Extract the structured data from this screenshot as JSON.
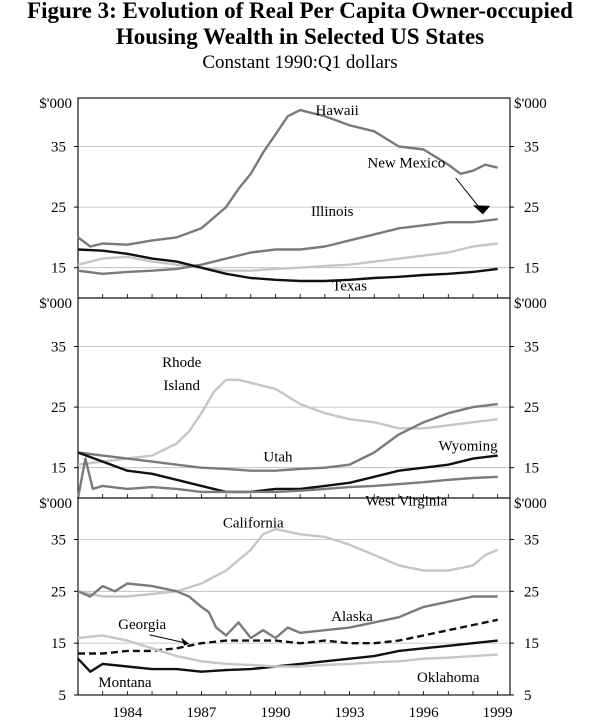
{
  "figure": {
    "title_line1": "Figure 3: Evolution of Real Per Capita Owner-occupied",
    "title_line2": "Housing Wealth in Selected US States",
    "subtitle": "Constant 1990:Q1 dollars"
  },
  "colors": {
    "dark": "#111111",
    "medium": "#7a7a7a",
    "light": "#c6c6c6"
  },
  "chart_data": [
    {
      "type": "line",
      "unit_label": "$'000",
      "yticks": [
        15,
        25,
        35
      ],
      "ylim": [
        10,
        43
      ],
      "xlim": [
        1982,
        1999.5
      ],
      "grid": true,
      "series": [
        {
          "name": "Hawaii",
          "color": "medium",
          "style": "solid",
          "x": [
            1982,
            1982.5,
            1983,
            1984,
            1985,
            1986,
            1987,
            1988,
            1988.5,
            1989,
            1989.5,
            1990,
            1990.5,
            1991,
            1991.5,
            1992,
            1993,
            1994,
            1995,
            1996,
            1997,
            1997.5,
            1998,
            1998.5,
            1999
          ],
          "y": [
            20,
            18.5,
            19,
            18.8,
            19.5,
            20,
            21.5,
            25,
            28,
            30.5,
            34,
            37,
            40,
            41,
            40.5,
            40,
            38.5,
            37.5,
            35,
            34.5,
            32,
            30.5,
            31,
            32,
            31.5
          ]
        },
        {
          "name": "New Mexico",
          "color": "light",
          "style": "solid",
          "x": [
            1982,
            1983,
            1984,
            1985,
            1986,
            1987,
            1988,
            1989,
            1990,
            1991,
            1992,
            1993,
            1994,
            1995,
            1996,
            1997,
            1998,
            1999
          ],
          "y": [
            15.5,
            16.5,
            16.8,
            16,
            15.5,
            15,
            14.5,
            14.5,
            14.8,
            15,
            15.3,
            15.5,
            16,
            16.5,
            17,
            17.5,
            18.5,
            19
          ]
        },
        {
          "name": "Illinois",
          "color": "medium",
          "style": "solid",
          "x": [
            1982,
            1983,
            1984,
            1985,
            1986,
            1987,
            1988,
            1989,
            1990,
            1991,
            1992,
            1993,
            1994,
            1995,
            1996,
            1997,
            1998,
            1999
          ],
          "y": [
            14.5,
            14,
            14.3,
            14.5,
            14.8,
            15.5,
            16.5,
            17.5,
            18,
            18,
            18.5,
            19.5,
            20.5,
            21.5,
            22,
            22.5,
            22.5,
            23
          ]
        },
        {
          "name": "Texas",
          "color": "dark",
          "style": "solid",
          "x": [
            1982,
            1983,
            1984,
            1985,
            1986,
            1987,
            1988,
            1989,
            1990,
            1991,
            1992,
            1993,
            1994,
            1995,
            1996,
            1997,
            1998,
            1999
          ],
          "y": [
            18,
            17.8,
            17.3,
            16.5,
            16,
            15,
            14,
            13.3,
            13,
            12.8,
            12.8,
            13,
            13.3,
            13.5,
            13.8,
            14,
            14.3,
            14.8
          ]
        }
      ],
      "labels": [
        {
          "text": "Hawaii",
          "x": 1992.5,
          "y": 40.2
        },
        {
          "text": "New Mexico",
          "x": 1995.3,
          "y": 31.5
        },
        {
          "text": "Illinois",
          "x": 1992.3,
          "y": 23.5
        },
        {
          "text": "Texas",
          "x": 1993.0,
          "y": 11.2
        }
      ]
    },
    {
      "type": "line",
      "unit_label": "$'000",
      "yticks": [
        15,
        25,
        35
      ],
      "ylim": [
        10,
        43
      ],
      "xlim": [
        1982,
        1999.5
      ],
      "grid": true,
      "series": [
        {
          "name": "Rhode Island",
          "color": "light",
          "style": "solid",
          "x": [
            1982,
            1983,
            1984,
            1985,
            1986,
            1986.5,
            1987,
            1987.5,
            1988,
            1988.5,
            1989,
            1990,
            1991,
            1992,
            1993,
            1994,
            1995,
            1996,
            1997,
            1998,
            1999
          ],
          "y": [
            15.5,
            16,
            16.5,
            17,
            19,
            21,
            24,
            27.5,
            29.5,
            29.5,
            29,
            28,
            25.5,
            24,
            23,
            22.5,
            21.5,
            21.5,
            22,
            22.5,
            23
          ]
        },
        {
          "name": "Utah",
          "color": "medium",
          "style": "solid",
          "x": [
            1982,
            1983,
            1984,
            1985,
            1986,
            1987,
            1988,
            1989,
            1990,
            1991,
            1992,
            1993,
            1994,
            1995,
            1996,
            1997,
            1998,
            1999
          ],
          "y": [
            17.5,
            17,
            16.5,
            16,
            15.5,
            15,
            14.8,
            14.5,
            14.5,
            14.8,
            15,
            15.5,
            17.5,
            20.5,
            22.5,
            24,
            25,
            25.5
          ]
        },
        {
          "name": "Wyoming",
          "color": "dark",
          "style": "solid",
          "x": [
            1982,
            1983,
            1984,
            1985,
            1986,
            1987,
            1988,
            1989,
            1990,
            1991,
            1992,
            1993,
            1994,
            1995,
            1996,
            1997,
            1998,
            1999
          ],
          "y": [
            17.5,
            16,
            14.5,
            14,
            13,
            12,
            11,
            11,
            11.5,
            11.5,
            12,
            12.5,
            13.5,
            14.5,
            15,
            15.5,
            16.5,
            17
          ]
        },
        {
          "name": "West Virginia",
          "color": "medium",
          "style": "solid",
          "x": [
            1982,
            1982.3,
            1982.6,
            1983,
            1984,
            1985,
            1986,
            1987,
            1988,
            1989,
            1990,
            1991,
            1992,
            1993,
            1994,
            1995,
            1996,
            1997,
            1998,
            1999
          ],
          "y": [
            10,
            16.5,
            11.5,
            12,
            11.5,
            11.8,
            11.5,
            11,
            11,
            11,
            11,
            11.2,
            11.5,
            11.8,
            12,
            12.3,
            12.6,
            13,
            13.3,
            13.5
          ]
        }
      ],
      "labels": [
        {
          "text": "Rhode",
          "x": 1986.2,
          "y": 31.6
        },
        {
          "text": "Island",
          "x": 1986.2,
          "y": 27.8
        },
        {
          "text": "Utah",
          "x": 1990.1,
          "y": 16.0
        },
        {
          "text": "Wyoming",
          "x": 1997.8,
          "y": 17.8
        },
        {
          "text": "West Virginia",
          "x": 1995.3,
          "y": 8.8
        }
      ]
    },
    {
      "type": "line",
      "unit_label": "$'000",
      "yticks": [
        5,
        15,
        25,
        35
      ],
      "ylim": [
        5,
        43
      ],
      "xlim": [
        1982,
        1999.5
      ],
      "xticks": [
        1984,
        1987,
        1990,
        1993,
        1996,
        1999
      ],
      "grid": true,
      "series": [
        {
          "name": "California",
          "color": "light",
          "style": "solid",
          "x": [
            1982,
            1983,
            1984,
            1985,
            1986,
            1987,
            1988,
            1989,
            1989.5,
            1990,
            1991,
            1992,
            1993,
            1994,
            1995,
            1996,
            1997,
            1998,
            1998.5,
            1999
          ],
          "y": [
            25,
            24,
            24,
            24.5,
            25,
            26.5,
            29,
            33,
            36,
            37,
            36,
            35.5,
            34,
            32,
            30,
            29,
            29,
            30,
            32,
            33
          ]
        },
        {
          "name": "Alaska",
          "color": "medium",
          "style": "solid",
          "x": [
            1982,
            1982.5,
            1983,
            1983.5,
            1984,
            1985,
            1986,
            1986.5,
            1987,
            1987.3,
            1987.6,
            1988,
            1988.5,
            1989,
            1989.5,
            1990,
            1990.5,
            1991,
            1992,
            1993,
            1994,
            1995,
            1996,
            1997,
            1998,
            1999
          ],
          "y": [
            25,
            24,
            26,
            25,
            26.5,
            26,
            25,
            24,
            22,
            21,
            18,
            16.5,
            19,
            16,
            17.5,
            16,
            18,
            17,
            17.5,
            18,
            19,
            20,
            22,
            23,
            24,
            24
          ]
        },
        {
          "name": "Georgia",
          "color": "dark",
          "style": "dashed",
          "x": [
            1982,
            1983,
            1984,
            1985,
            1986,
            1987,
            1988,
            1989,
            1990,
            1991,
            1992,
            1993,
            1994,
            1995,
            1996,
            1997,
            1998,
            1999
          ],
          "y": [
            13,
            13,
            13.5,
            13.5,
            14,
            15,
            15.5,
            15.5,
            15.5,
            15,
            15.5,
            15,
            15,
            15.5,
            16.5,
            17.5,
            18.5,
            19.5
          ]
        },
        {
          "name": "Montana",
          "color": "dark",
          "style": "solid",
          "x": [
            1982,
            1982.5,
            1983,
            1984,
            1985,
            1986,
            1987,
            1988,
            1989,
            1990,
            1991,
            1992,
            1993,
            1994,
            1995,
            1996,
            1997,
            1998,
            1999
          ],
          "y": [
            12,
            9.5,
            11,
            10.5,
            10,
            10,
            9.5,
            9.8,
            10,
            10.5,
            11,
            11.5,
            12,
            12.5,
            13.5,
            14,
            14.5,
            15,
            15.5
          ]
        },
        {
          "name": "Oklahoma",
          "color": "light",
          "style": "solid",
          "x": [
            1982,
            1983,
            1984,
            1985,
            1986,
            1987,
            1988,
            1989,
            1990,
            1991,
            1992,
            1993,
            1994,
            1995,
            1996,
            1997,
            1998,
            1999
          ],
          "y": [
            16,
            16.5,
            15.5,
            14,
            12.5,
            11.5,
            11,
            10.8,
            10.5,
            10.5,
            10.8,
            11,
            11.3,
            11.5,
            12,
            12.2,
            12.5,
            12.8
          ]
        }
      ],
      "labels": [
        {
          "text": "California",
          "x": 1989.1,
          "y": 37.3
        },
        {
          "text": "Alaska",
          "x": 1993.1,
          "y": 19.3
        },
        {
          "text": "Georgia",
          "x": 1984.6,
          "y": 17.7
        },
        {
          "text": "Montana",
          "x": 1983.9,
          "y": 6.5
        },
        {
          "text": "Oklahoma",
          "x": 1997.0,
          "y": 7.5
        }
      ]
    }
  ]
}
